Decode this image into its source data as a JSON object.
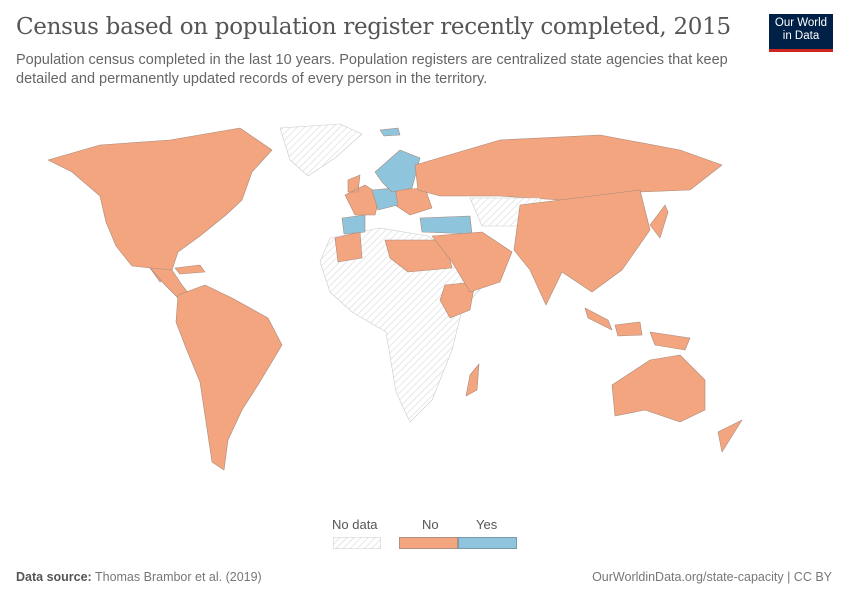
{
  "header": {
    "title": "Census based on population register recently completed, 2015",
    "subtitle": "Population census completed in the last 10 years. Population registers are centralized state agencies that keep detailed and permanently updated records of every person in the territory.",
    "logo_text": "Our World in Data"
  },
  "legend": {
    "no_data": "No data",
    "items": [
      {
        "label": "No",
        "color": "#F2A57F"
      },
      {
        "label": "Yes",
        "color": "#8EC4DC"
      }
    ]
  },
  "colors": {
    "no": "#F2A57F",
    "yes": "#8EC4DC",
    "no_data_hatch": "#d8d8d8",
    "border": "#9a7c6e"
  },
  "footer": {
    "source_label": "Data source:",
    "source": "Thomas Brambor et al. (2019)",
    "url": "OurWorldinData.org/state-capacity | CC BY"
  }
}
